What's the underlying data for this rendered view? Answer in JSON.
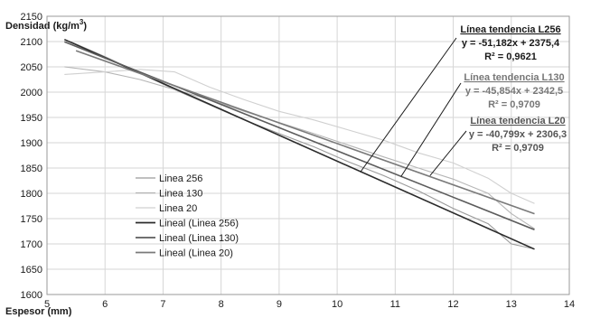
{
  "chart_data": {
    "type": "line",
    "ylabel": "Densidad (kg/m",
    "ylabel_sup": "3",
    "ylabel_end": ")",
    "xlabel": "Espesor (mm)",
    "xlim": [
      5,
      14
    ],
    "ylim": [
      1600,
      2150
    ],
    "x_ticks": [
      5,
      6,
      7,
      8,
      9,
      10,
      11,
      12,
      13,
      14
    ],
    "y_ticks": [
      1600,
      1650,
      1700,
      1750,
      1800,
      1850,
      1900,
      1950,
      2000,
      2050,
      2100,
      2150
    ],
    "grid": true,
    "legend_position": "center-left",
    "series": [
      {
        "name": "Linea 256",
        "kind": "data",
        "color": "#9a9a9a",
        "x": [
          5.4,
          6.0,
          6.6,
          7.2,
          7.8,
          8.4,
          9.0,
          9.6,
          10.2,
          10.8,
          11.4,
          12.0,
          12.6,
          13.0,
          13.4
        ],
        "y": [
          2100,
          2070,
          2038,
          2005,
          1975,
          1945,
          1918,
          1892,
          1862,
          1835,
          1805,
          1770,
          1740,
          1700,
          1690
        ]
      },
      {
        "name": "Linea 130",
        "kind": "data",
        "color": "#b5b5b5",
        "x": [
          5.3,
          6.0,
          6.6,
          7.2,
          7.8,
          8.4,
          9.0,
          9.6,
          10.2,
          10.8,
          11.4,
          12.0,
          12.6,
          13.0,
          13.4
        ],
        "y": [
          2050,
          2040,
          2025,
          2005,
          1985,
          1962,
          1940,
          1918,
          1895,
          1872,
          1850,
          1828,
          1800,
          1760,
          1730
        ]
      },
      {
        "name": "Linea 20",
        "kind": "data",
        "color": "#d0d0d0",
        "x": [
          5.3,
          6.0,
          6.6,
          7.2,
          7.8,
          8.4,
          9.0,
          9.6,
          10.2,
          10.8,
          11.4,
          12.0,
          12.6,
          13.0,
          13.4
        ],
        "y": [
          2035,
          2040,
          2045,
          2040,
          2010,
          1985,
          1962,
          1945,
          1925,
          1905,
          1880,
          1860,
          1830,
          1800,
          1780
        ]
      },
      {
        "name": "Lineal (Linea 256)",
        "kind": "trend",
        "color": "#2b2b2b",
        "x": [
          5.3,
          13.4
        ],
        "y": [
          2104.1,
          1689.6
        ]
      },
      {
        "name": "Lineal (Linea 130)",
        "kind": "trend",
        "color": "#5c5c5c",
        "x": [
          5.3,
          13.4
        ],
        "y": [
          2099.5,
          1728.0
        ]
      },
      {
        "name": "Lineal (Linea 20)",
        "kind": "trend",
        "color": "#7a7a7a",
        "x": [
          5.5,
          13.4
        ],
        "y": [
          2081.9,
          1759.6
        ]
      }
    ],
    "annotations": [
      {
        "title": "Línea tendencia L256",
        "equation": "y = -51,182x + 2375,4",
        "r2": "R² = 0,9621",
        "color": "#1a1a1a",
        "arrow_target": [
          10.4,
          1842
        ]
      },
      {
        "title": "Línea tendencia L130",
        "equation": "y = -45,854x + 2342,5",
        "r2": "R² = 0,9709",
        "color": "#777777",
        "arrow_target": [
          11.1,
          1833
        ]
      },
      {
        "title": "Línea tendencia L20",
        "equation": "y = -40,799x + 2306,3",
        "r2": "R² = 0,9709",
        "color": "#555555",
        "arrow_target": [
          11.6,
          1835
        ]
      }
    ]
  }
}
